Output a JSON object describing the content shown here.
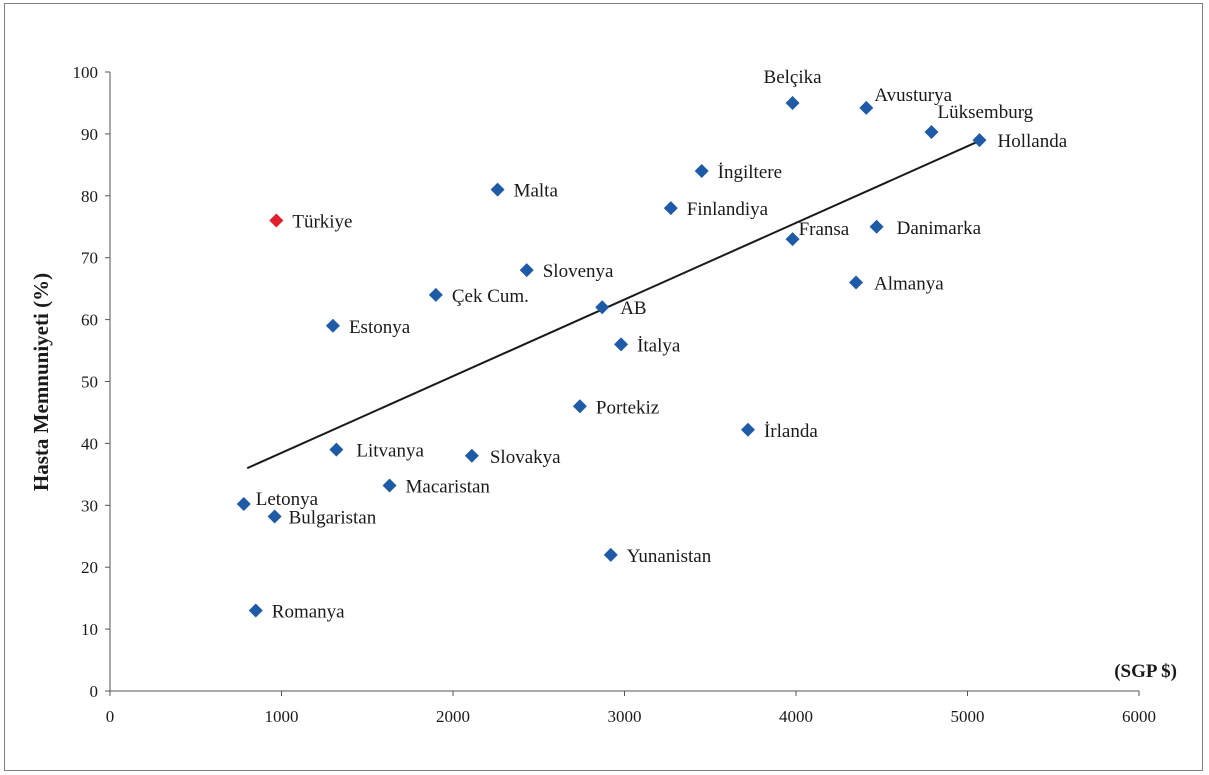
{
  "chart_data": {
    "type": "scatter",
    "title": "",
    "xlabel": "(SGP $)",
    "ylabel": "Hasta Memnuniyeti (%)",
    "xlim": [
      0,
      6000
    ],
    "ylim": [
      0,
      100
    ],
    "xticks": [
      0,
      1000,
      2000,
      3000,
      4000,
      5000,
      6000
    ],
    "yticks": [
      0,
      10,
      20,
      30,
      40,
      50,
      60,
      70,
      80,
      90,
      100
    ],
    "grid": false,
    "colors": {
      "default": "#1f5aa6",
      "highlight": "#e0202a",
      "trend": "#1a1a1a",
      "axis": "#555555"
    },
    "points": [
      {
        "label": "Türkiye",
        "x": 970,
        "y": 76,
        "highlight": true
      },
      {
        "label": "Belçika",
        "x": 3980,
        "y": 95
      },
      {
        "label": "Avusturya",
        "x": 4410,
        "y": 94.2
      },
      {
        "label": "Lüksemburg",
        "x": 4790,
        "y": 90.3
      },
      {
        "label": "Hollanda",
        "x": 5070,
        "y": 89
      },
      {
        "label": "İngiltere",
        "x": 3450,
        "y": 84
      },
      {
        "label": "Malta",
        "x": 2260,
        "y": 81
      },
      {
        "label": "Finlandiya",
        "x": 3270,
        "y": 78
      },
      {
        "label": "Fransa",
        "x": 3980,
        "y": 73
      },
      {
        "label": "Danimarka",
        "x": 4470,
        "y": 75
      },
      {
        "label": "Slovenya",
        "x": 2430,
        "y": 68
      },
      {
        "label": "Almanya",
        "x": 4350,
        "y": 66
      },
      {
        "label": "Çek Cum.",
        "x": 1900,
        "y": 64
      },
      {
        "label": "AB",
        "x": 2870,
        "y": 62
      },
      {
        "label": "Estonya",
        "x": 1300,
        "y": 59
      },
      {
        "label": "İtalya",
        "x": 2980,
        "y": 56
      },
      {
        "label": "Portekiz",
        "x": 2740,
        "y": 46
      },
      {
        "label": "İrlanda",
        "x": 3720,
        "y": 42.2
      },
      {
        "label": "Litvanya",
        "x": 1320,
        "y": 39
      },
      {
        "label": "Slovakya",
        "x": 2110,
        "y": 38
      },
      {
        "label": "Macaristan",
        "x": 1630,
        "y": 33.2
      },
      {
        "label": "Letonya",
        "x": 780,
        "y": 30.2
      },
      {
        "label": "Bulgaristan",
        "x": 960,
        "y": 28.2
      },
      {
        "label": "Yunanistan",
        "x": 2920,
        "y": 22
      },
      {
        "label": "Romanya",
        "x": 850,
        "y": 13
      }
    ],
    "trendline": [
      {
        "x": 800,
        "y": 36
      },
      {
        "x": 5080,
        "y": 89
      }
    ]
  }
}
